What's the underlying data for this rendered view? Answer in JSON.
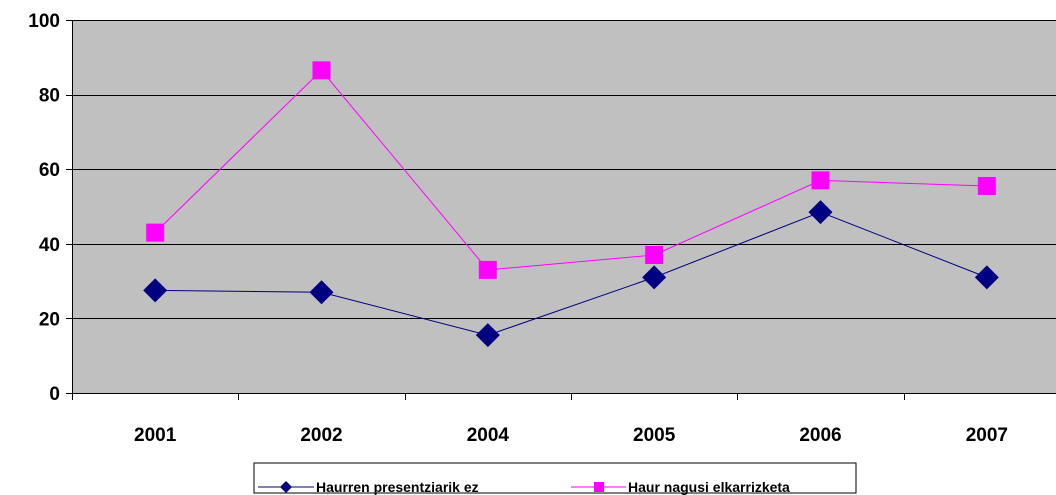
{
  "chart_data": {
    "type": "line",
    "title": "",
    "xlabel": "",
    "ylabel": "",
    "categories": [
      "2001",
      "2002",
      "2004",
      "2005",
      "2006",
      "2007"
    ],
    "ylim": [
      0,
      100
    ],
    "yticks": [
      0,
      20,
      40,
      60,
      80,
      100
    ],
    "grid": true,
    "legend_position": "bottom",
    "plot_background": "#c0c0c0",
    "series": [
      {
        "name": "Haurren presentziarik ez",
        "values": [
          27.5,
          27,
          15.5,
          31,
          48.5,
          31
        ],
        "color": "#000080",
        "marker": "diamond"
      },
      {
        "name": "Haur nagusi elkarrizketa",
        "values": [
          43,
          86.5,
          33,
          37,
          57,
          55.5
        ],
        "color": "#ff00ff",
        "marker": "square"
      }
    ]
  }
}
